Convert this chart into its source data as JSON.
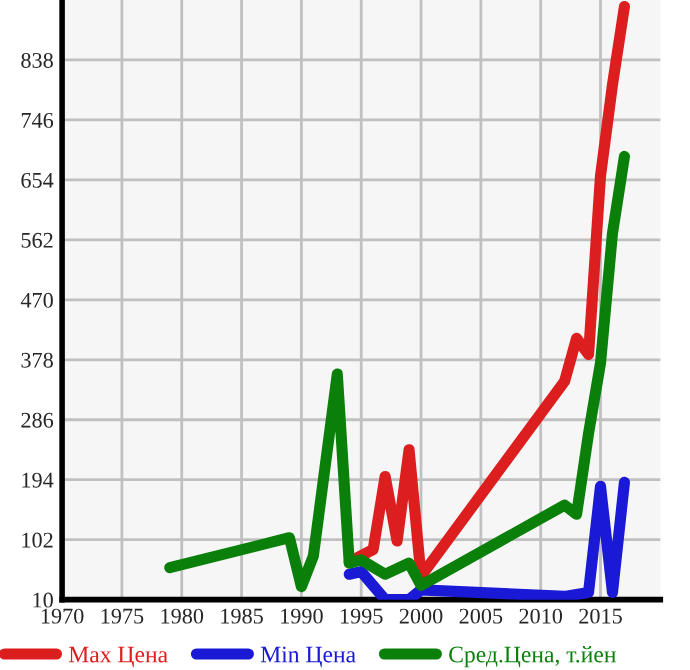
{
  "chart_data": {
    "type": "line",
    "xlim": [
      1970,
      2020
    ],
    "xticks": [
      1970,
      1975,
      1980,
      1985,
      1990,
      1995,
      2000,
      2005,
      2010,
      2015
    ],
    "ylim": [
      10,
      930
    ],
    "yticks": [
      10,
      102,
      194,
      286,
      378,
      470,
      562,
      654,
      746,
      838
    ],
    "grid": true,
    "legend": "bottom",
    "series": [
      {
        "name": "Max Цена",
        "color": "#dd1e1e",
        "x": [
          1994,
          1996,
          1997,
          1998,
          1999,
          2000,
          2012,
          2013,
          2014,
          2015,
          2016,
          2017
        ],
        "values": [
          68,
          87,
          199,
          100,
          240,
          46,
          345,
          411,
          386,
          660,
          800,
          920
        ]
      },
      {
        "name": "Min Цена",
        "color": "#1a1ad6",
        "x": [
          1994,
          1995,
          1997,
          1999,
          2000,
          2012,
          2014,
          2015,
          2016,
          2017
        ],
        "values": [
          49,
          53,
          10,
          10,
          25,
          15,
          21,
          184,
          21,
          190
        ]
      },
      {
        "name": "Сред.Цена, т.йен",
        "color": "#0a800a",
        "x": [
          1979,
          1989,
          1990,
          1991,
          1993,
          1994,
          1995,
          1997,
          1999,
          2000,
          2012,
          2013,
          2014,
          2015,
          2016,
          2017
        ],
        "values": [
          59,
          105,
          30,
          77,
          356,
          66,
          71,
          49,
          66,
          32,
          155,
          141,
          265,
          373,
          572,
          690
        ]
      }
    ]
  }
}
